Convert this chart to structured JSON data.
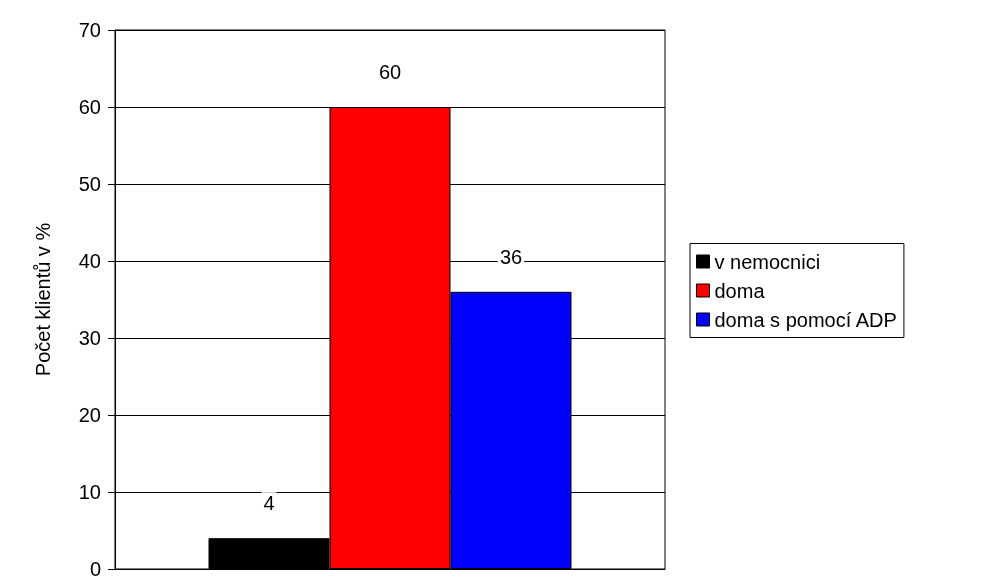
{
  "chart_data": {
    "type": "bar",
    "ylabel": "Počet klientů v %",
    "categories": [
      null
    ],
    "series": [
      {
        "name": "v nemocnici",
        "color": "#000000",
        "values": [
          4
        ]
      },
      {
        "name": "doma",
        "color": "#ff0000",
        "values": [
          60
        ]
      },
      {
        "name": "doma s pomocí ADP",
        "color": "#0000ff",
        "values": [
          36
        ]
      }
    ],
    "ylim": [
      0,
      70
    ],
    "yticks": [
      0,
      10,
      20,
      30,
      40,
      50,
      60,
      70
    ],
    "grid": "y",
    "legend": "right",
    "data_labels": true
  }
}
